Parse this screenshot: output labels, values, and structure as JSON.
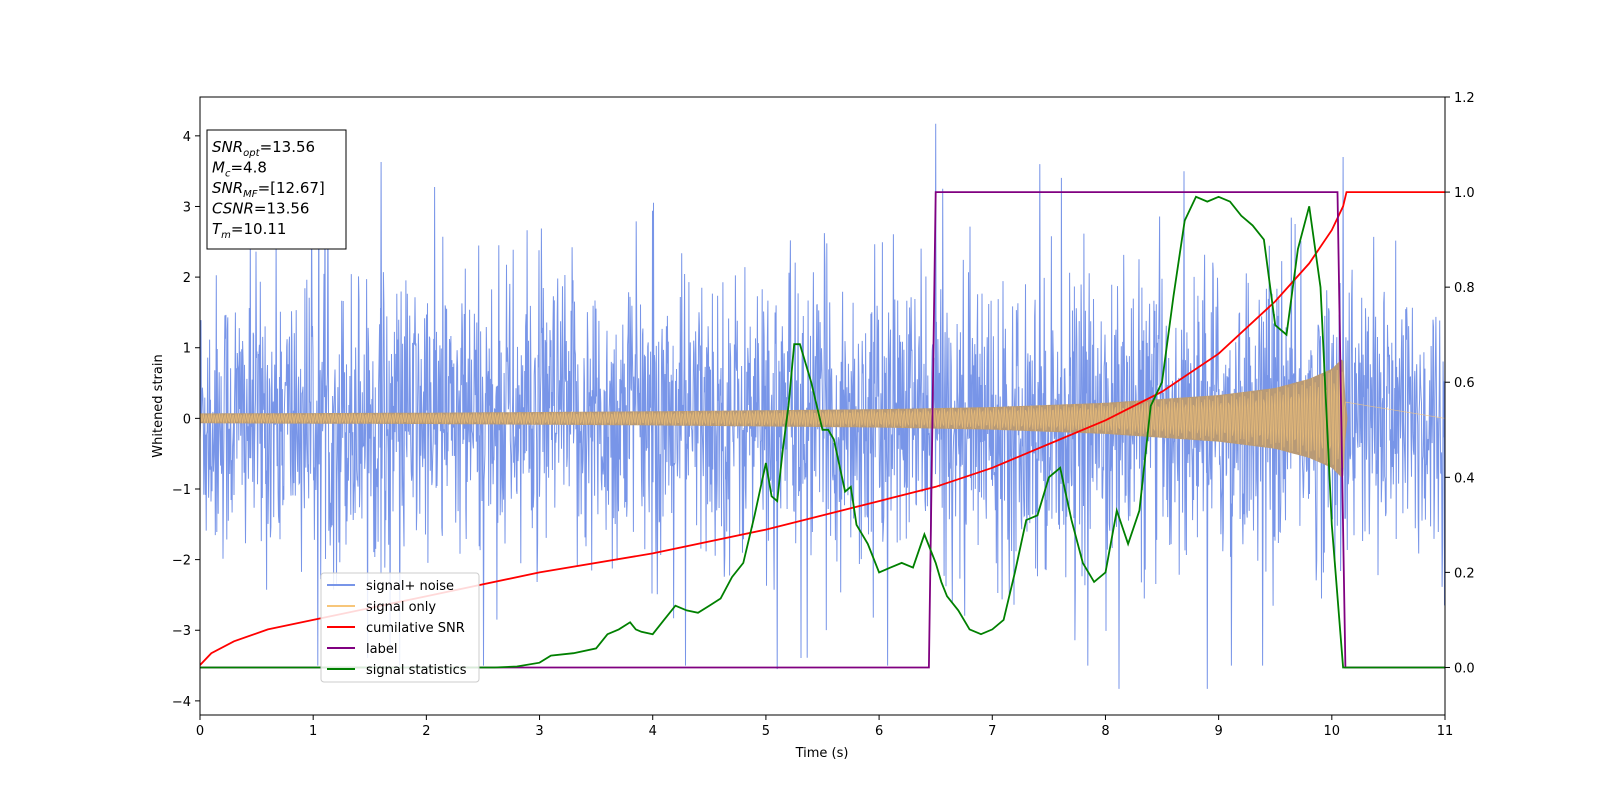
{
  "chart_data": {
    "type": "line",
    "xlabel": "Time (s)",
    "ylabel": "Whitened strain",
    "xlim": [
      0,
      11
    ],
    "ylim_left": [
      -4.2,
      4.55
    ],
    "ylim_right": [
      -0.1,
      1.2
    ],
    "x_ticks": [
      "0",
      "1",
      "2",
      "3",
      "4",
      "5",
      "6",
      "7",
      "8",
      "9",
      "10",
      "11"
    ],
    "y_ticks_left": [
      "−4",
      "−3",
      "−2",
      "−1",
      "0",
      "1",
      "2",
      "3",
      "4"
    ],
    "y_ticks_right": [
      "0.0",
      "0.2",
      "0.4",
      "0.6",
      "0.8",
      "1.0",
      "1.2"
    ],
    "grid": false,
    "legend_location": "lower-left",
    "annotation": [
      {
        "base": "SNR",
        "sub": "opt",
        "value": "=13.56"
      },
      {
        "base": "M",
        "sub": "c",
        "value": "=4.8"
      },
      {
        "base": "SNR",
        "sub": "MF",
        "value": "=[12.67]"
      },
      {
        "base": "CSNR",
        "sub": "",
        "value": "=13.56"
      },
      {
        "base": "T",
        "sub": "m",
        "value": "=10.11"
      }
    ],
    "series": [
      {
        "name": "signal+ noise",
        "axis": "left",
        "color": "#7895e8",
        "description_values": {
          "approx_range": [
            -3.8,
            4.17
          ],
          "notable_peaks": [
            {
              "x": 6.5,
              "y": 4.17
            },
            {
              "x": 10.1,
              "y": 3.7
            },
            {
              "x": 7.42,
              "y": 3.6
            },
            {
              "x": 1.6,
              "y": 3.63
            },
            {
              "x": 8.12,
              "y": -3.83
            },
            {
              "x": 8.9,
              "y": -3.83
            },
            {
              "x": 5.1,
              "y": -3.55
            }
          ]
        }
      },
      {
        "name": "signal only",
        "axis": "left",
        "color": "#f7c67a",
        "envelope": {
          "x": [
            0,
            2,
            4,
            6,
            7,
            8,
            9,
            9.5,
            9.8,
            10.0,
            10.1,
            10.13,
            11
          ],
          "amp": [
            0.07,
            0.08,
            0.1,
            0.13,
            0.16,
            0.22,
            0.33,
            0.43,
            0.56,
            0.7,
            0.86,
            0.0,
            0.0
          ]
        }
      },
      {
        "name": "cumilative SNR",
        "axis": "right",
        "color": "#ff0000",
        "x": [
          0,
          0.1,
          0.3,
          0.6,
          1,
          2,
          3,
          4,
          5,
          6,
          6.5,
          7,
          7.5,
          8,
          8.5,
          9,
          9.5,
          9.8,
          10.0,
          10.1,
          10.13,
          11
        ],
        "y": [
          0.005,
          0.03,
          0.055,
          0.08,
          0.1,
          0.15,
          0.2,
          0.24,
          0.29,
          0.35,
          0.38,
          0.42,
          0.47,
          0.52,
          0.58,
          0.66,
          0.77,
          0.85,
          0.92,
          0.97,
          1.0,
          1.0
        ]
      },
      {
        "name": "label",
        "axis": "right",
        "color": "#800080",
        "x": [
          0,
          6.44,
          6.5,
          10.05,
          10.12,
          11
        ],
        "y": [
          0,
          0,
          1,
          1,
          0,
          0
        ]
      },
      {
        "name": "signal statistics",
        "axis": "right",
        "color": "#008000",
        "x": [
          0,
          2.6,
          2.8,
          3.0,
          3.1,
          3.3,
          3.5,
          3.6,
          3.7,
          3.8,
          3.85,
          3.9,
          4.0,
          4.1,
          4.2,
          4.3,
          4.4,
          4.5,
          4.6,
          4.7,
          4.8,
          4.9,
          5.0,
          5.05,
          5.1,
          5.15,
          5.2,
          5.25,
          5.3,
          5.4,
          5.5,
          5.55,
          5.6,
          5.7,
          5.75,
          5.8,
          5.9,
          6.0,
          6.1,
          6.2,
          6.3,
          6.4,
          6.5,
          6.55,
          6.6,
          6.7,
          6.8,
          6.9,
          7.0,
          7.1,
          7.2,
          7.3,
          7.4,
          7.5,
          7.6,
          7.7,
          7.8,
          7.9,
          8.0,
          8.1,
          8.2,
          8.3,
          8.4,
          8.5,
          8.6,
          8.7,
          8.8,
          8.9,
          9.0,
          9.1,
          9.2,
          9.3,
          9.4,
          9.5,
          9.6,
          9.7,
          9.8,
          9.9,
          10.0,
          10.1,
          10.2,
          10.4,
          11
        ],
        "y": [
          0.0,
          0.0,
          0.002,
          0.01,
          0.025,
          0.03,
          0.04,
          0.07,
          0.08,
          0.095,
          0.08,
          0.075,
          0.07,
          0.1,
          0.13,
          0.12,
          0.115,
          0.13,
          0.145,
          0.19,
          0.22,
          0.32,
          0.43,
          0.36,
          0.35,
          0.46,
          0.55,
          0.68,
          0.68,
          0.6,
          0.5,
          0.5,
          0.48,
          0.37,
          0.38,
          0.3,
          0.26,
          0.2,
          0.21,
          0.22,
          0.21,
          0.28,
          0.22,
          0.18,
          0.15,
          0.12,
          0.08,
          0.07,
          0.08,
          0.1,
          0.2,
          0.31,
          0.32,
          0.4,
          0.42,
          0.31,
          0.22,
          0.18,
          0.2,
          0.33,
          0.26,
          0.33,
          0.55,
          0.6,
          0.78,
          0.94,
          0.99,
          0.98,
          0.99,
          0.98,
          0.95,
          0.93,
          0.9,
          0.72,
          0.7,
          0.88,
          0.97,
          0.8,
          0.3,
          0.0,
          0.0,
          0.0,
          0.0
        ]
      }
    ]
  }
}
